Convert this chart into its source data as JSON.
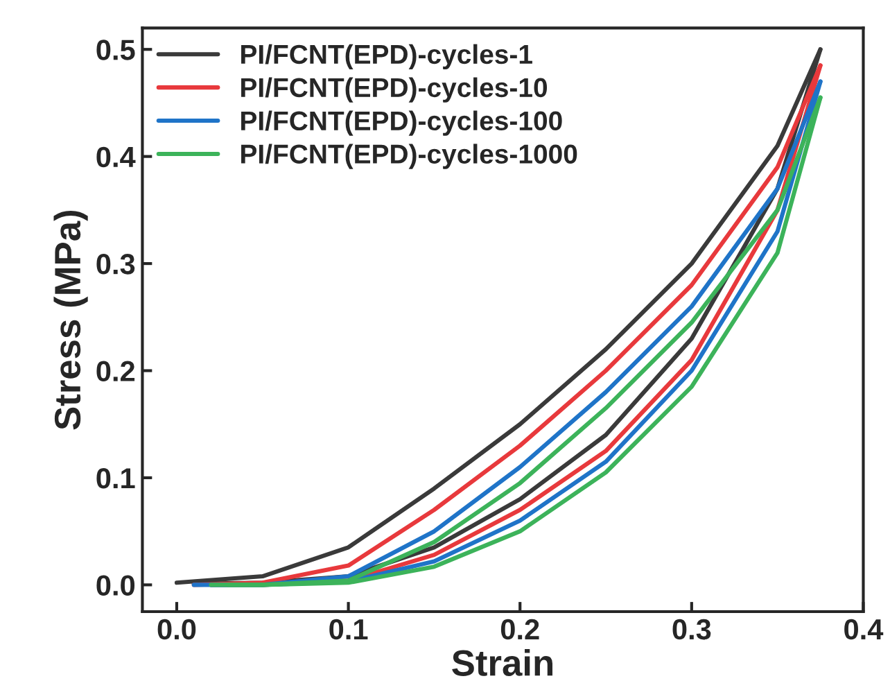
{
  "chart_data": {
    "type": "line",
    "xlabel": "Strain",
    "ylabel": "Stress (MPa)",
    "xlim": [
      -0.02,
      0.4
    ],
    "ylim": [
      -0.025,
      0.52
    ],
    "xticks": [
      {
        "value": 0,
        "label": "0.0"
      },
      0.1,
      0.2,
      0.3,
      0.4
    ],
    "yticks": [
      {
        "value": 0,
        "label": "0.0"
      },
      0.1,
      0.2,
      0.3,
      0.4,
      0.5
    ],
    "grid": false,
    "legend": "top left",
    "marker": "none",
    "line_style": "solid",
    "series": [
      {
        "name": "PI/FCNT(EPD)-cycles-1",
        "color": "#3a3a3a",
        "x": [
          0.0,
          0.05,
          0.1,
          0.15,
          0.2,
          0.25,
          0.3,
          0.35,
          0.375
        ],
        "values": [
          0.002,
          0.008,
          0.035,
          0.09,
          0.15,
          0.22,
          0.3,
          0.41,
          0.5
        ]
      },
      {
        "color": "#3a3a3a",
        "x": [
          0.01,
          0.05,
          0.1,
          0.15,
          0.2,
          0.25,
          0.3,
          0.35,
          0.375
        ],
        "values": [
          0.001,
          0.002,
          0.008,
          0.035,
          0.08,
          0.14,
          0.23,
          0.37,
          0.5
        ]
      },
      {
        "name": "PI/FCNT(EPD)-cycles-10",
        "color": "#e8393c",
        "x": [
          0.01,
          0.05,
          0.1,
          0.15,
          0.2,
          0.25,
          0.3,
          0.35,
          0.375
        ],
        "values": [
          0.0,
          0.002,
          0.018,
          0.07,
          0.13,
          0.2,
          0.28,
          0.39,
          0.485
        ]
      },
      {
        "color": "#e8393c",
        "x": [
          0.02,
          0.05,
          0.1,
          0.15,
          0.2,
          0.25,
          0.3,
          0.35,
          0.375
        ],
        "values": [
          0.0,
          0.0,
          0.004,
          0.028,
          0.07,
          0.125,
          0.21,
          0.35,
          0.485
        ]
      },
      {
        "name": "PI/FCNT(EPD)-cycles-100",
        "color": "#1f74c8",
        "x": [
          0.01,
          0.05,
          0.1,
          0.15,
          0.2,
          0.25,
          0.3,
          0.35,
          0.375
        ],
        "values": [
          0.0,
          0.0,
          0.008,
          0.05,
          0.11,
          0.18,
          0.26,
          0.37,
          0.47
        ]
      },
      {
        "color": "#1f74c8",
        "x": [
          0.02,
          0.05,
          0.1,
          0.15,
          0.2,
          0.25,
          0.3,
          0.35,
          0.375
        ],
        "values": [
          0.0,
          0.0,
          0.003,
          0.022,
          0.06,
          0.115,
          0.2,
          0.33,
          0.47
        ]
      },
      {
        "name": "PI/FCNT(EPD)-cycles-1000",
        "color": "#3cb35a",
        "x": [
          0.02,
          0.05,
          0.1,
          0.15,
          0.2,
          0.25,
          0.3,
          0.35,
          0.375
        ],
        "values": [
          0.0,
          0.0,
          0.004,
          0.04,
          0.095,
          0.165,
          0.245,
          0.35,
          0.455
        ]
      },
      {
        "color": "#3cb35a",
        "x": [
          0.03,
          0.05,
          0.1,
          0.15,
          0.2,
          0.25,
          0.3,
          0.35,
          0.375
        ],
        "values": [
          0.0,
          0.0,
          0.002,
          0.017,
          0.05,
          0.105,
          0.185,
          0.31,
          0.455
        ]
      }
    ]
  }
}
